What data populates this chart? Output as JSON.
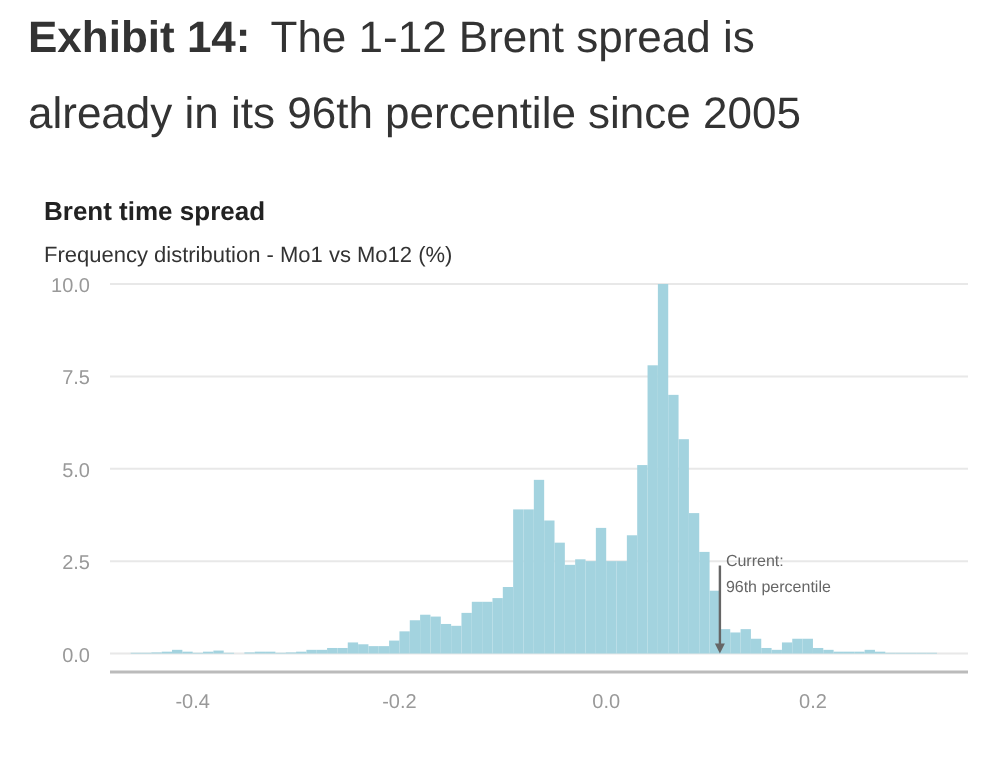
{
  "chart_data": {
    "type": "histogram",
    "title": "Brent time spread",
    "subtitle": "Frequency distribution - Mo1 vs Mo12 (%)",
    "annotations": [
      "Exhibit 14:",
      "The 1-12 Brent spread is already in its 96th percentile since 2005",
      {
        "text": "Current: 96th percentile",
        "x": 0.11,
        "y": 0
      }
    ],
    "bins": [
      -0.48,
      -0.47,
      -0.46,
      -0.45,
      -0.44,
      -0.43,
      -0.42,
      -0.41,
      -0.4,
      -0.39,
      -0.38,
      -0.37,
      -0.36,
      -0.35,
      -0.34,
      -0.33,
      -0.32,
      -0.31,
      -0.3,
      -0.29,
      -0.28,
      -0.27,
      -0.26,
      -0.25,
      -0.24,
      -0.23,
      -0.22,
      -0.21,
      -0.2,
      -0.19,
      -0.18,
      -0.17,
      -0.16,
      -0.15,
      -0.14,
      -0.13,
      -0.12,
      -0.11,
      -0.1,
      -0.09,
      -0.08,
      -0.07,
      -0.06,
      -0.05,
      -0.04,
      -0.03,
      -0.02,
      -0.01,
      0,
      0.01,
      0.02,
      0.03,
      0.04,
      0.05,
      0.06,
      0.07,
      0.08,
      0.09,
      0.1,
      0.11,
      0.12,
      0.13,
      0.14,
      0.15,
      0.16,
      0.17,
      0.18,
      0.19,
      0.2,
      0.21,
      0.22,
      0.23,
      0.24,
      0.25,
      0.26,
      0.27,
      0.28,
      0.29,
      0.3,
      0.31,
      0.32,
      0.33,
      0.34,
      0.35
    ],
    "values": [
      0,
      0,
      0.02,
      0.02,
      0.03,
      0.05,
      0.1,
      0.05,
      0.02,
      0.05,
      0.08,
      0.02,
      0,
      0.03,
      0.05,
      0.05,
      0.02,
      0.03,
      0.05,
      0.1,
      0.1,
      0.15,
      0.15,
      0.3,
      0.25,
      0.2,
      0.2,
      0.35,
      0.6,
      0.9,
      1.05,
      1.0,
      0.8,
      0.75,
      1.1,
      1.4,
      1.4,
      1.5,
      1.8,
      3.9,
      3.9,
      4.7,
      3.6,
      3.0,
      2.4,
      2.55,
      2.5,
      3.4,
      2.5,
      2.5,
      3.2,
      5.1,
      7.8,
      10.0,
      7.0,
      5.8,
      3.8,
      2.75,
      1.7,
      0.66,
      0.57,
      0.66,
      0.4,
      0.15,
      0.1,
      0.3,
      0.4,
      0.4,
      0.15,
      0.1,
      0.05,
      0.05,
      0.05,
      0.1,
      0.05,
      0.02,
      0.02,
      0.02,
      0.02,
      0.02,
      0,
      0,
      0
    ],
    "color": "#a3d3df",
    "xlim": [
      -0.48,
      0.35
    ],
    "xticks": [
      -0.4,
      -0.2,
      {
        "value": 0,
        "label": "0.0"
      },
      0.2
    ],
    "ylim": [
      -0.5,
      10
    ],
    "yticks": [
      {
        "value": 0,
        "label": "0.0"
      },
      2.5,
      {
        "value": 5,
        "label": "5.0"
      },
      7.5,
      {
        "value": 10,
        "label": "10.0"
      }
    ],
    "grid": "y"
  }
}
